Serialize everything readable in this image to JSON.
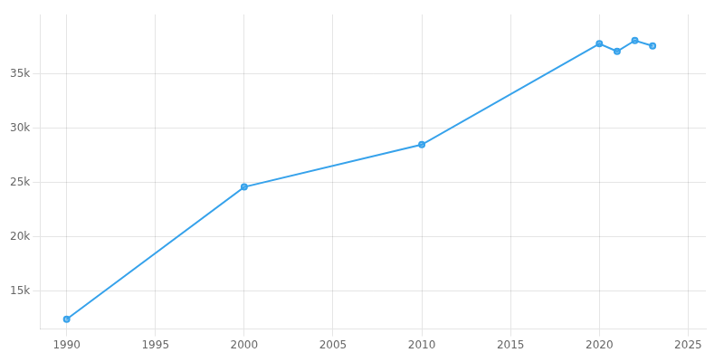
{
  "chart_data": {
    "type": "line",
    "x": [
      1990,
      2000,
      2010,
      2020,
      2021,
      2022,
      2023
    ],
    "values": [
      12400,
      24600,
      28500,
      37800,
      37100,
      38100,
      37600
    ],
    "xlim": [
      1988.5,
      2026
    ],
    "ylim": [
      11500,
      40500
    ],
    "xticks": [
      1990,
      1995,
      2000,
      2005,
      2010,
      2015,
      2020,
      2025
    ],
    "yticks": [
      {
        "value": 15000,
        "label": "15k"
      },
      {
        "value": 20000,
        "label": "20k"
      },
      {
        "value": 25000,
        "label": "25k"
      },
      {
        "value": 30000,
        "label": "30k"
      },
      {
        "value": 35000,
        "label": "35k"
      }
    ],
    "grid": true
  }
}
